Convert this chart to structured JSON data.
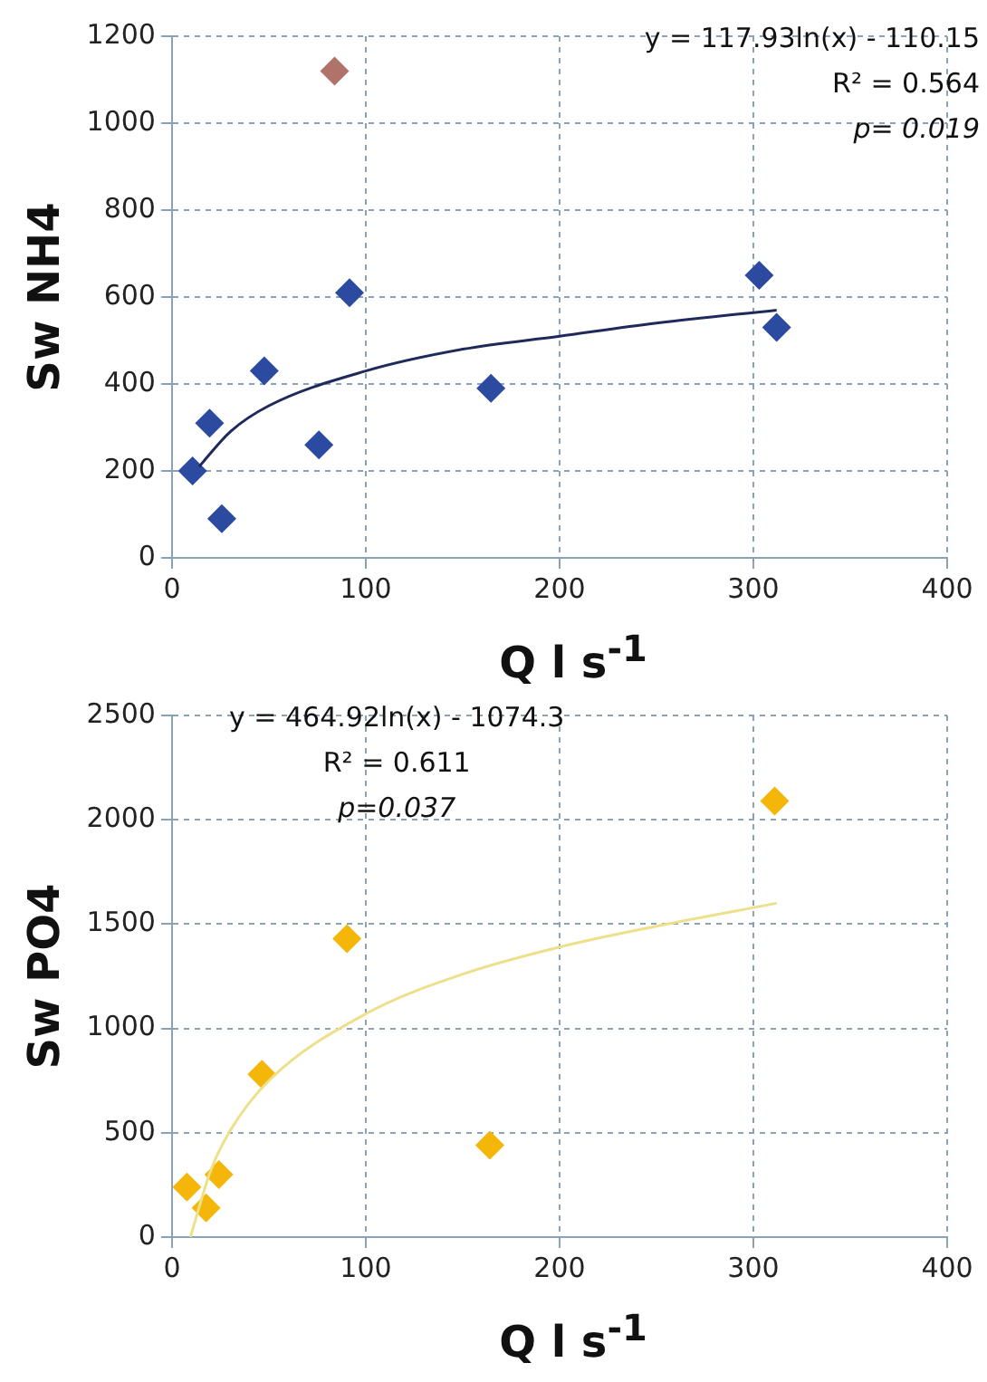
{
  "chart_data": [
    {
      "type": "scatter",
      "xlabel": "Q l s$^{-1}$",
      "ylabel": "Sw NH4",
      "xlim": [
        0,
        400
      ],
      "xticks": [
        0,
        100,
        200,
        300,
        400
      ],
      "ylim": [
        0,
        1200
      ],
      "yticks": [
        0,
        200,
        400,
        600,
        800,
        1000,
        1200
      ],
      "grid": true,
      "legend": false,
      "marker": "diamond",
      "annotations": [
        "y = 117.93ln(x) - 110.15",
        "R² = 0.564",
        "p= 0.019"
      ],
      "series": [
        {
          "color": "#2b4aa0",
          "x": [
            10.6,
            19.4,
            25.7,
            47.6,
            75.8,
            91.6,
            164.6,
            303,
            312
          ],
          "values": [
            200,
            310,
            90,
            430,
            260,
            610,
            390,
            650,
            530
          ]
        },
        {
          "color": "#b0736a",
          "x": [
            83.9
          ],
          "values": [
            1120
          ]
        },
        {
          "type": "line",
          "color": "#1f2a5c",
          "marker": "none",
          "x": [
            14,
            30,
            50,
            100,
            150,
            200,
            250,
            312
          ],
          "values": [
            210,
            290,
            350,
            430,
            480,
            510,
            540,
            570
          ]
        }
      ]
    },
    {
      "type": "scatter",
      "xlabel": "Q l s$^{-1}$",
      "ylabel": "Sw PO4",
      "xlim": [
        0,
        400
      ],
      "xticks": [
        0,
        100,
        200,
        300,
        400
      ],
      "ylim": [
        0,
        2500
      ],
      "yticks": [
        0,
        500,
        1000,
        1500,
        2000,
        2500
      ],
      "grid": true,
      "legend": false,
      "marker": "diamond",
      "annotations": [
        "y = 464.92ln(x) - 1074.3",
        "R² = 0.611",
        "p=0.037"
      ],
      "series": [
        {
          "color": "#f5b60a",
          "x": [
            7.7,
            17.6,
            24.2,
            46.4,
            90.3,
            164,
            311
          ],
          "values": [
            240,
            140,
            300,
            780,
            1430,
            440,
            2090
          ]
        },
        {
          "type": "line",
          "color": "#ece08a",
          "marker": "none",
          "x": [
            9.5,
            20,
            30,
            50,
            100,
            150,
            200,
            250,
            312
          ],
          "values": [
            0,
            320,
            510,
            750,
            1070,
            1260,
            1390,
            1490,
            1600
          ]
        }
      ]
    }
  ]
}
